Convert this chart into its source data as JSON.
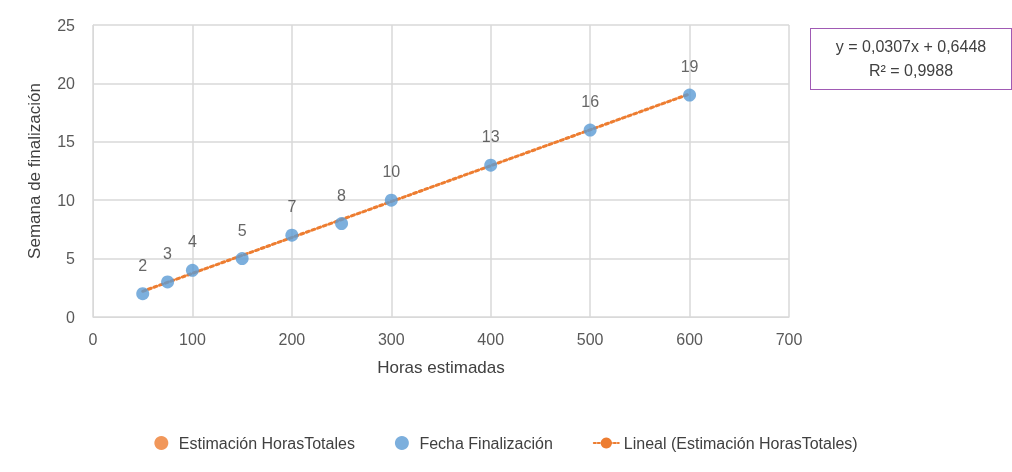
{
  "chart_data": {
    "type": "scatter",
    "xlabel": "Horas estimadas",
    "ylabel": "Semana de finalización",
    "x": [
      50,
      75,
      100,
      150,
      200,
      250,
      300,
      400,
      500,
      600
    ],
    "series": [
      {
        "name": "Estimación HorasTotales",
        "color": "#ed7d31",
        "values": [
          null,
          null,
          null,
          null,
          null,
          null,
          null,
          null,
          null,
          null
        ]
      },
      {
        "name": "Fecha Finalización",
        "color": "#5b9bd5",
        "values": [
          2,
          3,
          4,
          5,
          7,
          8,
          10,
          13,
          16,
          19
        ],
        "value_labels": [
          "2",
          "3",
          "4",
          "5",
          "7",
          "8",
          "10",
          "13",
          "16",
          "19"
        ]
      },
      {
        "name": "Lineal (Estimación HorasTotales)",
        "type": "line",
        "color": "#ed7d31",
        "x": [
          50,
          600
        ],
        "values": [
          2.2,
          19.1
        ],
        "line_style": "dotted",
        "marker": "none"
      }
    ],
    "xlim": [
      0,
      700
    ],
    "xticks": [
      0,
      100,
      200,
      300,
      400,
      500,
      600,
      700
    ],
    "ylim": [
      0,
      25
    ],
    "yticks": [
      0,
      5,
      10,
      15,
      20,
      25
    ],
    "grid": true,
    "legend": "bottom",
    "marker": "circle",
    "annotations": [
      "y = 0,0307x + 0,6448",
      "R² = 0,9988"
    ]
  }
}
